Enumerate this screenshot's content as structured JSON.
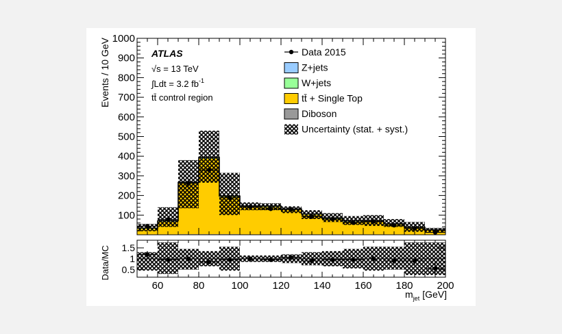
{
  "chart_data": [
    {
      "type": "bar",
      "stacked": true,
      "grid": false,
      "legend_position": "top-right",
      "ylabel": "Events / 10 GeV",
      "xlim": [
        50,
        200
      ],
      "ylim": [
        0,
        1000
      ],
      "x_ticks": [
        60,
        80,
        100,
        120,
        140,
        160,
        180,
        200
      ],
      "y_ticks": [
        100,
        200,
        300,
        400,
        500,
        600,
        700,
        800,
        900,
        1000
      ],
      "bin_edges": [
        50,
        60,
        70,
        80,
        90,
        100,
        110,
        120,
        130,
        140,
        150,
        160,
        170,
        180,
        190,
        200
      ],
      "annotations": {
        "experiment": "ATLAS",
        "energy": "√s = 13 TeV",
        "lumi_prefix": "∫Ldt = 3.2 fb",
        "lumi_exponent": "-1",
        "region": "tt̄ control region"
      },
      "series": [
        {
          "name": "Diboson",
          "color": "#999999",
          "values": [
            2,
            2,
            3,
            3,
            3,
            2,
            2,
            2,
            2,
            2,
            2,
            2,
            2,
            1,
            1
          ]
        },
        {
          "name": "tt̄ + Single Top",
          "color": "#ffcc00",
          "values": [
            28,
            65,
            260,
            385,
            190,
            140,
            140,
            125,
            100,
            80,
            65,
            65,
            50,
            35,
            22
          ]
        },
        {
          "name": "W+jets",
          "color": "#99ff99",
          "values": [
            2,
            2,
            2,
            3,
            2,
            2,
            2,
            2,
            2,
            2,
            2,
            2,
            2,
            1,
            1
          ]
        },
        {
          "name": "Z+jets",
          "color": "#99ccff",
          "values": [
            2,
            2,
            2,
            3,
            2,
            2,
            2,
            2,
            2,
            2,
            2,
            2,
            2,
            1,
            1
          ]
        }
      ],
      "uncertainty": {
        "name": "Uncertainty (stat. + syst.)",
        "lower": [
          18,
          40,
          135,
          265,
          100,
          125,
          125,
          110,
          80,
          65,
          50,
          45,
          40,
          15,
          10
        ],
        "upper": [
          55,
          140,
          380,
          530,
          315,
          165,
          160,
          145,
          125,
          110,
          95,
          100,
          80,
          65,
          35
        ]
      },
      "data": {
        "name": "Data 2015",
        "x": [
          55,
          65,
          75,
          85,
          95,
          105,
          115,
          125,
          135,
          145,
          155,
          165,
          175,
          185,
          195
        ],
        "y": [
          44,
          78,
          262,
          330,
          188,
          142,
          132,
          130,
          92,
          80,
          62,
          68,
          48,
          32,
          12
        ],
        "err": [
          7,
          9,
          16,
          18,
          14,
          12,
          11,
          11,
          10,
          9,
          8,
          8,
          7,
          6,
          4
        ]
      }
    },
    {
      "type": "scatter",
      "ylabel": "Data/MC",
      "xlabel_main": "m",
      "xlabel_sub": "jet",
      "xlabel_unit": "[GeV]",
      "xlim": [
        50,
        200
      ],
      "ylim": [
        0.15,
        1.85
      ],
      "x_ticks": [
        60,
        80,
        100,
        120,
        140,
        160,
        180,
        200
      ],
      "y_ticks": [
        0.5,
        1,
        1.5
      ],
      "bin_edges": [
        50,
        60,
        70,
        80,
        90,
        100,
        110,
        120,
        130,
        140,
        150,
        160,
        170,
        180,
        190,
        200
      ],
      "ratio": {
        "x": [
          55,
          65,
          75,
          85,
          95,
          105,
          115,
          125,
          135,
          145,
          155,
          165,
          175,
          185,
          195
        ],
        "y": [
          1.2,
          0.95,
          1.0,
          0.85,
          0.95,
          1.0,
          0.95,
          1.05,
          0.9,
          0.95,
          0.95,
          1.0,
          0.9,
          0.9,
          0.55
        ],
        "err": [
          0.15,
          0.12,
          0.06,
          0.05,
          0.07,
          0.08,
          0.08,
          0.08,
          0.1,
          0.11,
          0.13,
          0.12,
          0.14,
          0.17,
          0.3
        ]
      },
      "uncertainty": {
        "lower": [
          0.45,
          0.3,
          0.5,
          0.65,
          0.45,
          0.85,
          0.85,
          0.8,
          0.7,
          0.65,
          0.55,
          0.45,
          0.5,
          0.25,
          0.25
        ],
        "upper": [
          1.3,
          1.75,
          1.45,
          1.35,
          1.55,
          1.15,
          1.15,
          1.2,
          1.3,
          1.35,
          1.45,
          1.55,
          1.55,
          1.75,
          1.75
        ]
      }
    }
  ]
}
